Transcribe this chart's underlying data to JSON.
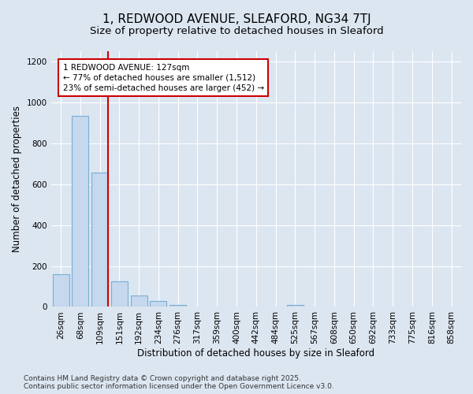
{
  "title": "1, REDWOOD AVENUE, SLEAFORD, NG34 7TJ",
  "subtitle": "Size of property relative to detached houses in Sleaford",
  "xlabel": "Distribution of detached houses by size in Sleaford",
  "ylabel": "Number of detached properties",
  "categories": [
    "26sqm",
    "68sqm",
    "109sqm",
    "151sqm",
    "192sqm",
    "234sqm",
    "276sqm",
    "317sqm",
    "359sqm",
    "400sqm",
    "442sqm",
    "484sqm",
    "525sqm",
    "567sqm",
    "608sqm",
    "650sqm",
    "692sqm",
    "733sqm",
    "775sqm",
    "816sqm",
    "858sqm"
  ],
  "values": [
    160,
    935,
    655,
    125,
    57,
    28,
    10,
    0,
    0,
    0,
    0,
    0,
    8,
    0,
    0,
    0,
    0,
    0,
    0,
    0,
    0
  ],
  "bar_color": "#c5d8ed",
  "bar_edge_color": "#7bafd4",
  "background_color": "#dce6f1",
  "grid_color": "#ffffff",
  "property_line_color": "#cc0000",
  "annotation_text": "1 REDWOOD AVENUE: 127sqm\n← 77% of detached houses are smaller (1,512)\n23% of semi-detached houses are larger (452) →",
  "annotation_box_color": "#ffffff",
  "annotation_box_edge": "#cc0000",
  "ylim": [
    0,
    1250
  ],
  "yticks": [
    0,
    200,
    400,
    600,
    800,
    1000,
    1200
  ],
  "footer": "Contains HM Land Registry data © Crown copyright and database right 2025.\nContains public sector information licensed under the Open Government Licence v3.0.",
  "title_fontsize": 11,
  "subtitle_fontsize": 9.5,
  "axis_label_fontsize": 8.5,
  "tick_fontsize": 7.5,
  "annotation_fontsize": 7.5,
  "footer_fontsize": 6.5
}
